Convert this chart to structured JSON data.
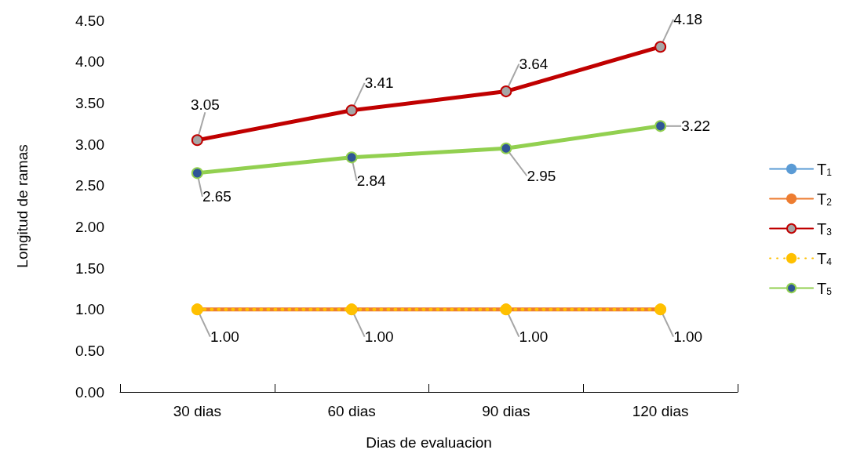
{
  "chart_data": {
    "type": "line",
    "xlabel": "Dias de evaluacion",
    "ylabel": "Longitud de ramas",
    "categories": [
      "30 dias",
      "60 dias",
      "90 dias",
      "120 dias"
    ],
    "series": [
      {
        "name": "T$_{1}$",
        "color": "#5b9bd5",
        "values": [
          null,
          null,
          null,
          null
        ]
      },
      {
        "name": "T$_{2}$",
        "color": "#ed7d31",
        "values": [
          1.0,
          1.0,
          1.0,
          1.0
        ]
      },
      {
        "name": "T$_{3}$",
        "color": "#c00000",
        "values": [
          3.05,
          3.41,
          3.64,
          4.18
        ],
        "value_labels": [
          "3.05",
          "3.41",
          "3.64",
          "4.18"
        ]
      },
      {
        "name": "T$_{4}$",
        "color": "#ffc000",
        "values": [
          1.0,
          1.0,
          1.0,
          1.0
        ],
        "line_style": "dotted",
        "value_labels": [
          "1.00",
          "1.00",
          "1.00",
          "1.00"
        ]
      },
      {
        "name": "T$_{5}$",
        "color": "#92d050",
        "values": [
          2.65,
          2.84,
          2.95,
          3.22
        ],
        "value_labels": [
          "2.65",
          "2.84",
          "2.95",
          "3.22"
        ]
      }
    ],
    "ylim": [
      0,
      4.5
    ],
    "yticks": [
      {
        "value": 0,
        "label": "0.00"
      },
      {
        "value": 0.5,
        "label": "0.50"
      },
      {
        "value": 1,
        "label": "1.00"
      },
      {
        "value": 1.5,
        "label": "1.50"
      },
      {
        "value": 2,
        "label": "2.00"
      },
      {
        "value": 2.5,
        "label": "2.50"
      },
      {
        "value": 3,
        "label": "3.00"
      },
      {
        "value": 3.5,
        "label": "3.50"
      },
      {
        "value": 4,
        "label": "4.00"
      },
      {
        "value": 4.5,
        "label": "4.50"
      }
    ],
    "grid": false,
    "legend": "right",
    "marker": "circle",
    "line_style": "solid"
  }
}
